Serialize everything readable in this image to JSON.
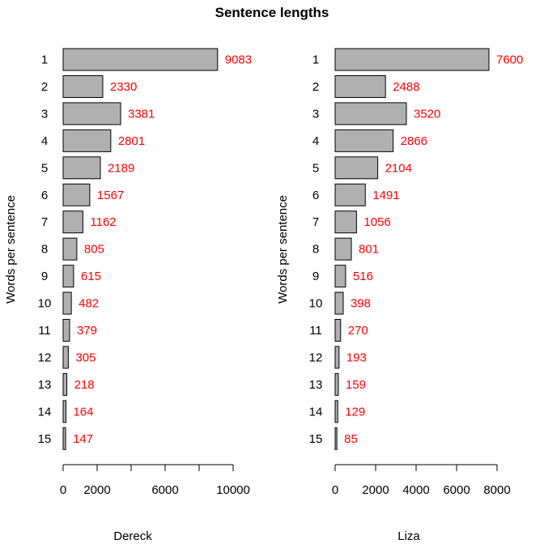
{
  "colors": {
    "bar_fill": "#b0b0b0",
    "bar_stroke": "#000000",
    "label": "#ff0000",
    "axis": "#000000"
  },
  "chart_data": {
    "type": "bar",
    "orientation": "horizontal",
    "title": "Sentence lengths",
    "ylabel": "Words per sentence",
    "categories": [
      "1",
      "2",
      "3",
      "4",
      "5",
      "6",
      "7",
      "8",
      "9",
      "10",
      "11",
      "12",
      "13",
      "14",
      "15"
    ],
    "panels": [
      {
        "xlabel": "Dereck",
        "values": [
          9083,
          2330,
          3381,
          2801,
          2189,
          1567,
          1162,
          805,
          615,
          482,
          379,
          305,
          218,
          164,
          147
        ],
        "xlim": [
          0,
          10000
        ],
        "xticks": [
          0,
          2000,
          4000,
          6000,
          8000,
          10000
        ],
        "xtick_labels": [
          "0",
          "2000",
          "",
          "6000",
          "",
          "10000"
        ]
      },
      {
        "xlabel": "Liza",
        "values": [
          7600,
          2488,
          3520,
          2866,
          2104,
          1491,
          1056,
          801,
          516,
          398,
          270,
          193,
          159,
          129,
          85
        ],
        "xlim": [
          0,
          8000
        ],
        "xticks": [
          0,
          2000,
          4000,
          6000,
          8000
        ],
        "xtick_labels": [
          "0",
          "2000",
          "4000",
          "6000",
          "8000"
        ]
      }
    ],
    "grid": false,
    "data_labels": true
  }
}
